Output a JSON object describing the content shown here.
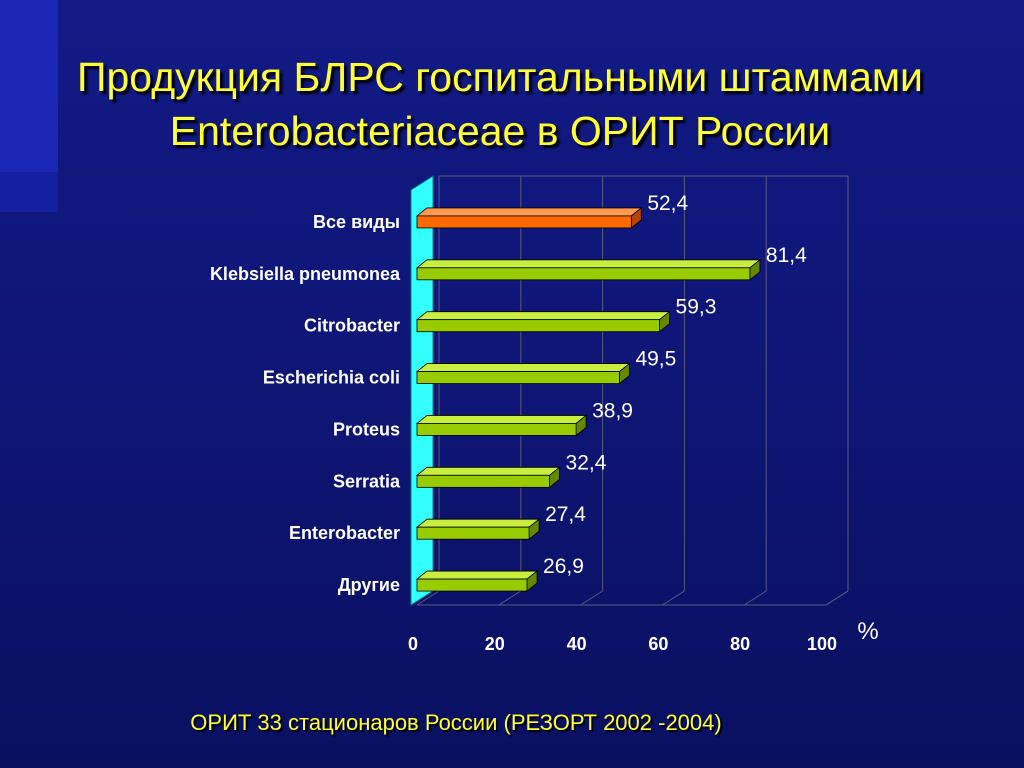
{
  "slide": {
    "title_line1": "Продукция БЛРС госпитальными штаммами",
    "title_line2": "Enterobacteriaceae в ОРИТ России",
    "footnote": "ОРИТ 33 стационаров России (РЕЗОРТ 2002 -2004)"
  },
  "chart_data": {
    "type": "bar",
    "orientation": "horizontal",
    "categories": [
      "Все виды",
      "Klebsiella pneumonea",
      "Citrobacter",
      "Escherichia coli",
      "Proteus",
      "Serratia",
      "Enterobacter",
      "Другие"
    ],
    "values": [
      52.4,
      81.4,
      59.3,
      49.5,
      38.9,
      32.4,
      27.4,
      26.9
    ],
    "value_labels": [
      "52,4",
      "81,4",
      "59,3",
      "49,5",
      "38,9",
      "32,4",
      "27,4",
      "26,9"
    ],
    "xlim": [
      0,
      100
    ],
    "xticks": [
      0,
      20,
      40,
      60,
      80,
      100
    ],
    "xlabel": "%",
    "grid": true,
    "colors": {
      "highlight": "#ff6a00",
      "bar": "#99cc00",
      "wall": "#33ffff",
      "grid": "#5a5a7a",
      "axis_text": "#ffffff"
    },
    "highlight_index": 0
  }
}
